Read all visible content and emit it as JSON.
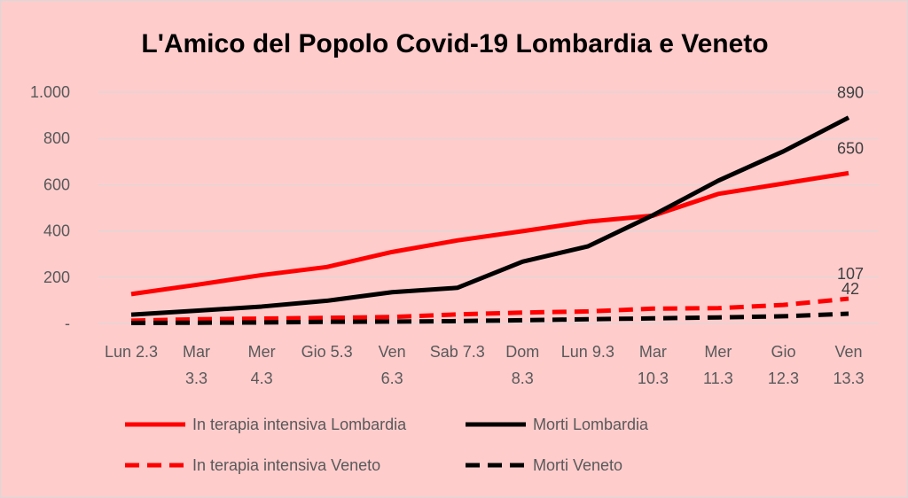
{
  "chart_data": {
    "type": "line",
    "title": "L'Amico del Popolo Covid-19 Lombardia e Veneto",
    "background_color": "#ffcccc",
    "categories": [
      [
        "Lun 2.3"
      ],
      [
        "Mar",
        "3.3"
      ],
      [
        "Mer",
        "4.3"
      ],
      [
        "Gio 5.3"
      ],
      [
        "Ven",
        "6.3"
      ],
      [
        "Sab 7.3"
      ],
      [
        "Dom",
        "8.3"
      ],
      [
        "Lun 9.3"
      ],
      [
        "Mar",
        "10.3"
      ],
      [
        "Mer",
        "11.3"
      ],
      [
        "Gio",
        "12.3"
      ],
      [
        "Ven",
        "13.3"
      ]
    ],
    "y_ticks": [
      "-",
      "200",
      "400",
      "600",
      "800",
      "1.000"
    ],
    "ylim": [
      0,
      1000
    ],
    "grid": true,
    "legend_position": "bottom",
    "series": [
      {
        "name": "In terapia intensiva Lombardia",
        "color": "#ff0000",
        "dashed": false,
        "values": [
          127,
          167,
          209,
          244,
          309,
          359,
          399,
          440,
          466,
          560,
          605,
          650
        ],
        "end_label": "650"
      },
      {
        "name": "Morti Lombardia",
        "color": "#000000",
        "dashed": false,
        "values": [
          38,
          55,
          73,
          98,
          135,
          154,
          267,
          333,
          468,
          617,
          744,
          890
        ],
        "end_label": "890"
      },
      {
        "name": "In terapia intensiva Veneto",
        "color": "#ff0000",
        "dashed": true,
        "values": [
          12,
          18,
          21,
          24,
          28,
          39,
          47,
          52,
          64,
          66,
          80,
          107
        ],
        "end_label": "107"
      },
      {
        "name": "Morti Veneto",
        "color": "#000000",
        "dashed": true,
        "values": [
          2,
          3,
          4,
          7,
          8,
          10,
          14,
          18,
          22,
          26,
          31,
          42
        ],
        "end_label": "42"
      }
    ]
  }
}
